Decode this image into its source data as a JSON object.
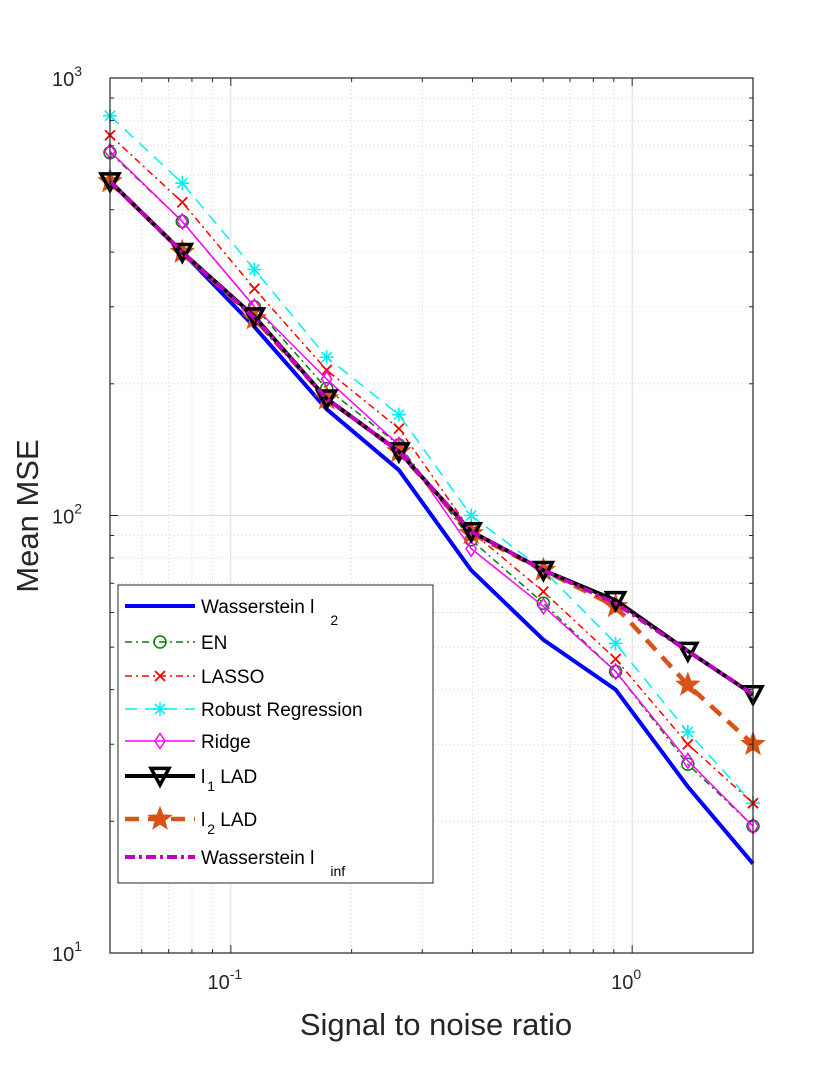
{
  "chart_data": {
    "type": "line",
    "xlabel": "Signal to noise ratio",
    "ylabel": "Mean MSE",
    "xscale": "log",
    "yscale": "log",
    "xlim": [
      0.05,
      2.0
    ],
    "ylim": [
      10,
      1000
    ],
    "grid": true,
    "minor_grid": true,
    "legend_placement": "bottom-left",
    "x_ticks": [
      {
        "value": 0.1,
        "base": "10",
        "exp": "-1"
      },
      {
        "value": 1,
        "base": "10",
        "exp": "0"
      }
    ],
    "y_ticks": [
      {
        "value": 10,
        "base": "10",
        "exp": "1"
      },
      {
        "value": 100,
        "base": "10",
        "exp": "2"
      },
      {
        "value": 1000,
        "base": "10",
        "exp": "3"
      }
    ],
    "x": [
      0.05,
      0.0757,
      0.1145,
      0.1733,
      0.2623,
      0.397,
      0.6008,
      0.9093,
      1.3762,
      2.0
    ],
    "series": [
      {
        "id": "wl2",
        "label": "Wasserstein l",
        "sub": "2",
        "color": "#0000ff",
        "width": 4,
        "dash": "",
        "marker": "none",
        "values": [
          580,
          400,
          270,
          175,
          127,
          75,
          52,
          40,
          24,
          16
        ]
      },
      {
        "id": "en",
        "label": "EN",
        "sub": "",
        "color": "#008000",
        "width": 1.5,
        "dash": "7,4,2,4",
        "marker": "circle",
        "values": [
          675,
          470,
          300,
          195,
          145,
          88,
          63,
          44,
          27,
          19.5
        ]
      },
      {
        "id": "lasso",
        "label": "LASSO",
        "sub": "",
        "color": "#ff0000",
        "width": 1.5,
        "dash": "7,4,2,4",
        "marker": "x",
        "values": [
          740,
          520,
          330,
          215,
          158,
          92,
          67,
          47,
          30,
          22
        ]
      },
      {
        "id": "robust",
        "label": "Robust Regression",
        "sub": "",
        "color": "#00eeee",
        "width": 1.5,
        "dash": "12,8",
        "marker": "asterisk",
        "values": [
          820,
          575,
          365,
          230,
          170,
          100,
          75,
          51,
          32,
          22
        ]
      },
      {
        "id": "ridge",
        "label": "Ridge",
        "sub": "",
        "color": "#ff00ff",
        "width": 1.5,
        "dash": "",
        "marker": "diamond",
        "values": [
          680,
          470,
          300,
          205,
          145,
          84,
          62,
          44,
          27.5,
          19.5
        ]
      },
      {
        "id": "l1lad",
        "label": "l",
        "sub": "1",
        "after": " LAD",
        "color": "#000000",
        "width": 4,
        "dash": "",
        "marker": "triangle-down",
        "values": [
          580,
          400,
          285,
          185,
          140,
          92,
          75,
          64,
          49,
          39
        ]
      },
      {
        "id": "l2lad",
        "label": "l",
        "sub": "2",
        "after": " LAD",
        "color": "#d95319",
        "width": 4.5,
        "dash": "14,9",
        "marker": "star",
        "values": [
          580,
          400,
          282,
          185,
          140,
          91,
          75,
          62,
          41,
          30
        ]
      },
      {
        "id": "wlinf",
        "label": "Wasserstein l",
        "sub": "inf",
        "color": "#bf00bf",
        "width": 4,
        "dash": "10,4,3,4",
        "marker": "none",
        "values": [
          580,
          400,
          283,
          185,
          140,
          92,
          75,
          63,
          49,
          39
        ]
      }
    ]
  }
}
